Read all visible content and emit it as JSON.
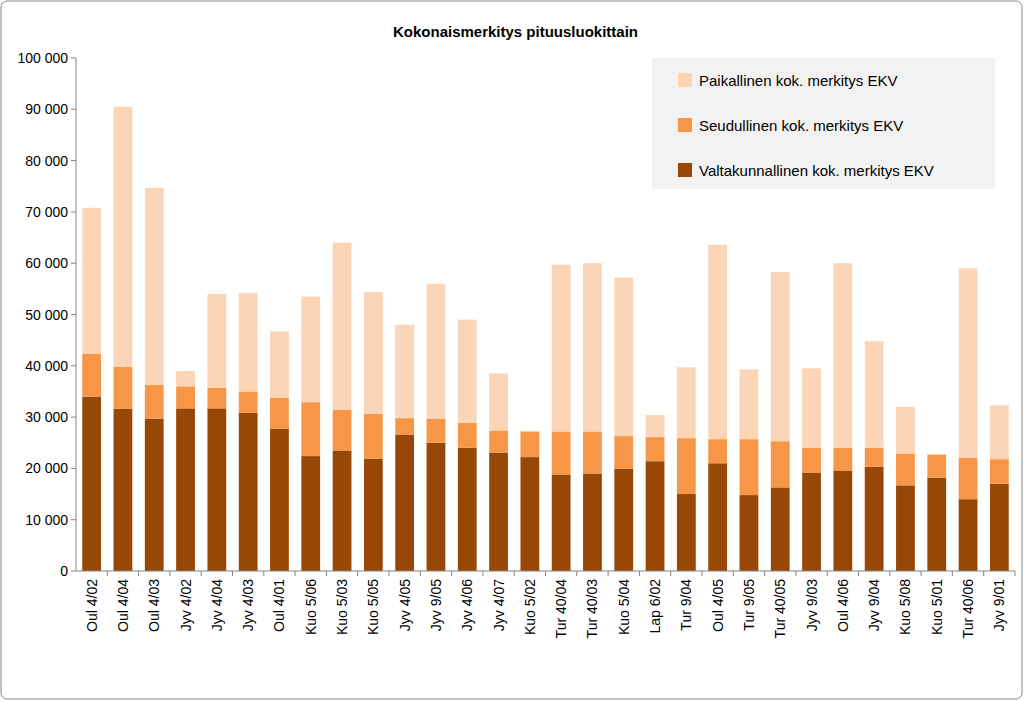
{
  "chart_data": {
    "type": "bar",
    "stacked": true,
    "grid": false,
    "legend": "top-right",
    "title": "Kokonaismerkitys pituusluokittain",
    "categories": [
      "Oul 4/02",
      "Oul 4/04",
      "Oul 4/03",
      "Jyv 4/02",
      "Jyv 4/04",
      "Jyv 4/03",
      "Oul 4/01",
      "Kuo 5/06",
      "Kuo 5/03",
      "Kuo 5/05",
      "Jyv 4/05",
      "Jyv 9/05",
      "Jyv 4/06",
      "Jyv 4/07",
      "Kuo 5/02",
      "Tur 40/04",
      "Tur 40/03",
      "Kuo 5/04",
      "Lap 6/02",
      "Tur 9/04",
      "Oul 4/05",
      "Tur 9/05",
      "Tur 40/05",
      "Jyv 9/03",
      "Oul 4/06",
      "Jyv 9/04",
      "Kuo 5/08",
      "Kuo 5/01",
      "Tur 40/06",
      "Jyv 9/01"
    ],
    "series": [
      {
        "name": "Valtakunnallinen kok. merkitys EKV",
        "color": "#974706",
        "values": [
          34000,
          31600,
          29700,
          31700,
          31700,
          30800,
          27700,
          22400,
          23500,
          21900,
          26600,
          25000,
          24000,
          23100,
          22200,
          18800,
          19000,
          19900,
          21400,
          15000,
          21000,
          14800,
          16300,
          19200,
          19600,
          20300,
          16700,
          18200,
          14000,
          17000
        ]
      },
      {
        "name": "Seudullinen kok. merkitys EKV",
        "color": "#f79646",
        "values": [
          8300,
          8200,
          6600,
          4300,
          4000,
          4200,
          6100,
          10500,
          7900,
          8700,
          3200,
          4700,
          4900,
          4300,
          5000,
          8400,
          8200,
          6400,
          4700,
          10900,
          4700,
          10900,
          9000,
          4800,
          4400,
          3700,
          6200,
          4500,
          8100,
          4800
        ]
      },
      {
        "name": "Paikallinen kok. merkitys EKV",
        "color": "#fbd5b5",
        "values": [
          28500,
          50700,
          38400,
          3000,
          18300,
          19200,
          12900,
          20600,
          32600,
          23800,
          18200,
          26300,
          20100,
          11100,
          0,
          32500,
          32800,
          30900,
          4300,
          13800,
          37900,
          13600,
          33000,
          15500,
          36000,
          20800,
          9100,
          0,
          36900,
          10500
        ]
      }
    ],
    "ylim": [
      0,
      100000
    ],
    "yticks": [
      0,
      {
        "value": 10000,
        "label": "10 000"
      },
      {
        "value": 20000,
        "label": "20 000"
      },
      {
        "value": 30000,
        "label": "30 000"
      },
      {
        "value": 40000,
        "label": "40 000"
      },
      {
        "value": 50000,
        "label": "50 000"
      },
      {
        "value": 60000,
        "label": "60 000"
      },
      {
        "value": 70000,
        "label": "70 000"
      },
      {
        "value": 80000,
        "label": "80 000"
      },
      {
        "value": 90000,
        "label": "90 000"
      },
      {
        "value": 100000,
        "label": "100 000"
      }
    ]
  }
}
